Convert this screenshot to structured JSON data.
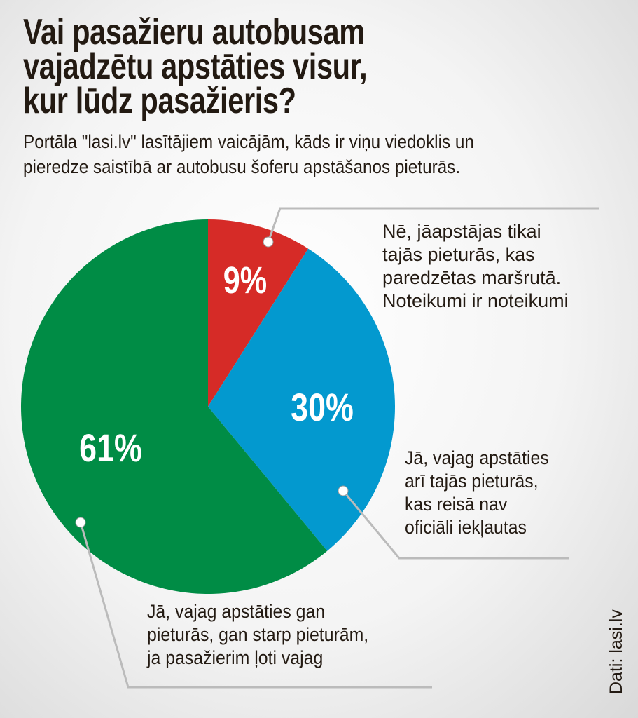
{
  "title_lines": [
    "Vai pasažieru autobusam",
    "vajadzētu apstāties visur,",
    "kur lūdz pasažieris?"
  ],
  "subtitle_lines": [
    "Portāla \"lasi.lv\" lasītājiem vaicājām, kāds ir viņu viedoklis un",
    "pieredze saistībā ar autobusu šoferu apstāšanos pieturās."
  ],
  "source": "Dati: lasi.lv",
  "chart_data": {
    "type": "pie",
    "title": "Vai pasažieru autobusam vajadzētu apstāties visur, kur lūdz pasažieris?",
    "slices": [
      {
        "value": 9,
        "label_text": "9%",
        "color": "#d62b27",
        "label_lines": [
          "Nē, jāapstājas tikai",
          "tajās pieturās, kas",
          "paredzētas maršrutā.",
          "Noteikumi ir noteikumi"
        ]
      },
      {
        "value": 30,
        "label_text": "30%",
        "color": "#0399cf",
        "label_lines": [
          "Jā, vajag apstāties",
          "arī tajās pieturās,",
          "kas reisā nav",
          "oficiāli iekļautas"
        ]
      },
      {
        "value": 61,
        "label_text": "61%",
        "color": "#008c45",
        "label_lines": [
          "Jā, vajag apstāties gan",
          "pieturās, gan starp pieturām,",
          "ja pasažierim ļoti vajag"
        ]
      }
    ],
    "start": "top",
    "direction": "clockwise"
  }
}
